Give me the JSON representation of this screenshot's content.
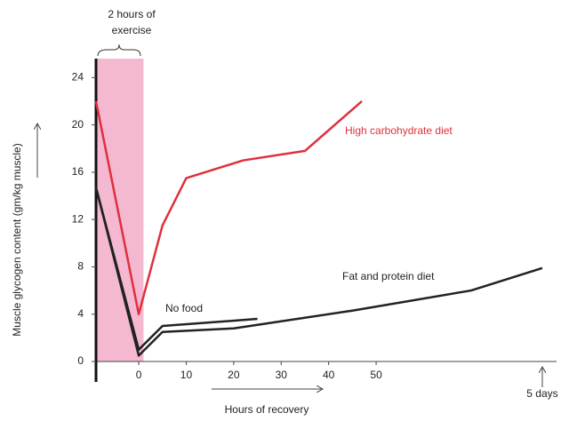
{
  "chart_data": {
    "type": "line",
    "annotation": [
      "2 hours of",
      "exercise"
    ],
    "ylabel": "Muscle glycogen content (gm/kg muscle)",
    "xlabel": "Hours of recovery",
    "xlim": [
      -9,
      88
    ],
    "ylim": [
      0,
      25
    ],
    "xticks": [
      0,
      10,
      20,
      30,
      40,
      50,
      {
        "value": 85,
        "label": "5 days"
      }
    ],
    "yticks": [
      0,
      4,
      8,
      12,
      16,
      20,
      24
    ],
    "shaded_region": [
      -9,
      1
    ],
    "shaded_color": "#f4b8d0",
    "series": [
      {
        "name": "High carbohydrate diet",
        "color": "#e0303c",
        "x": [
          -9,
          0,
          5,
          10,
          22,
          35,
          47
        ],
        "values": [
          22,
          4,
          11.5,
          15.5,
          17,
          17.8,
          22
        ]
      },
      {
        "name": "No food",
        "color": "#222222",
        "x": [
          -9,
          0,
          5,
          25
        ],
        "values": [
          14.7,
          1,
          3,
          3.6
        ]
      },
      {
        "name": "Fat and protein diet",
        "color": "#222222",
        "x": [
          -9,
          0,
          5,
          20,
          45,
          70,
          85
        ],
        "values": [
          14.7,
          0.5,
          2.5,
          2.8,
          4.3,
          6,
          7.9
        ]
      }
    ]
  }
}
